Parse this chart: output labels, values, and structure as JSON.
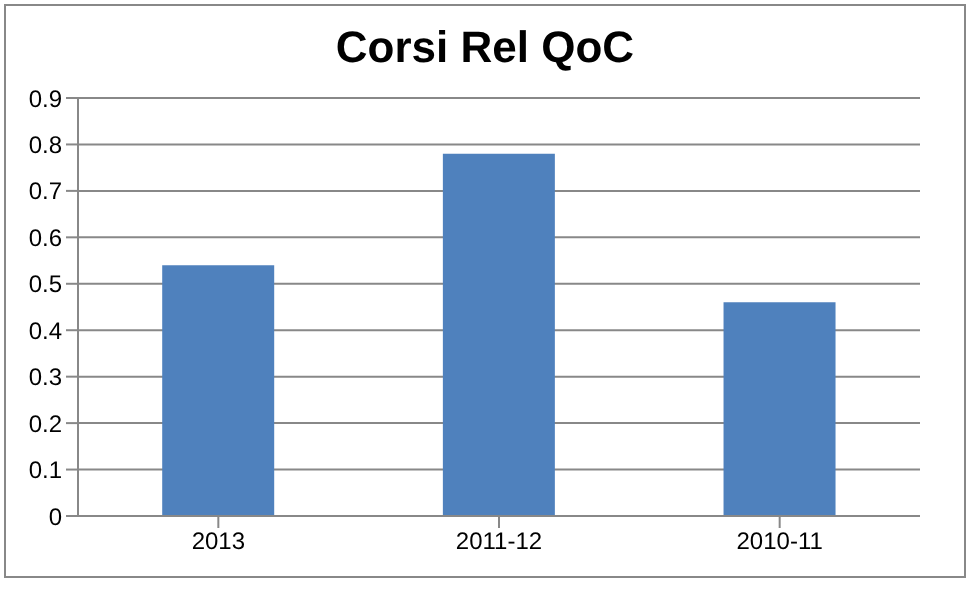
{
  "chart_data": {
    "type": "bar",
    "title": "Corsi Rel QoC",
    "categories": [
      "2013",
      "2011-12",
      "2010-11"
    ],
    "values": [
      0.54,
      0.78,
      0.46
    ],
    "color": "#4f81bd",
    "ylim": [
      0,
      0.9
    ],
    "yticks": [
      0,
      0.1,
      0.2,
      0.3,
      0.4,
      0.5,
      0.6,
      0.7,
      0.8,
      0.9
    ],
    "grid": "y",
    "legend": false
  }
}
